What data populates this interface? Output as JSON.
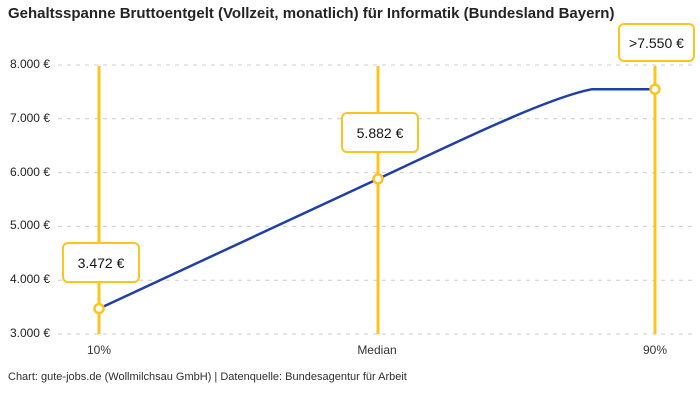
{
  "header": {
    "title": "Gehaltsspanne Bruttoentgelt (Vollzeit, monatlich) für Informatik (Bundesland Bayern)"
  },
  "footer": {
    "attribution": "Chart: gute-jobs.de (Wollmilchsau GmbH) | Datenquelle: Bundesagentur für Arbeit"
  },
  "colors": {
    "line": "#1e3fa6",
    "marker": "#fdc41f",
    "grid": "#cccccc",
    "title_text": "#242424",
    "axis_text": "#333333",
    "background": "#ffffff"
  },
  "chart_data": {
    "type": "line",
    "title": "Gehaltsspanne Bruttoentgelt (Vollzeit, monatlich) für Informatik (Bundesland Bayern)",
    "categories": [
      "10%",
      "Median",
      "90%"
    ],
    "values": [
      3472,
      5882,
      7550
    ],
    "value_labels": [
      "3.472 €",
      "5.882 €",
      ">7.550 €"
    ],
    "xlabel": "",
    "ylabel": "",
    "ylim": [
      3000,
      8000
    ],
    "y_ticks": [
      8000,
      7000,
      6000,
      5000,
      4000,
      3000
    ],
    "y_tick_labels": [
      "8.000 €",
      "7.000 €",
      "6.000 €",
      "5.000 €",
      "4.000 €",
      "3.000 €"
    ],
    "grid": "horizontal-dashed",
    "legend": "none",
    "marker_style": "open-circle-on-vertical-rule"
  }
}
